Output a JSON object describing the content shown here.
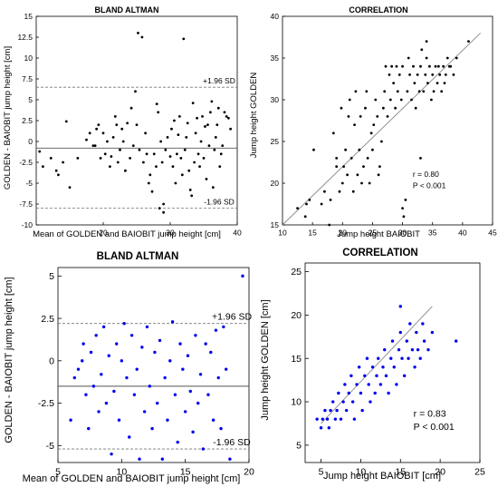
{
  "chart_data": [
    {
      "type": "scatter",
      "title": "BLAND ALTMAN",
      "xlabel": "Mean of GOLDEN and BAIOBIT jump height [cm]",
      "ylabel": "GOLDEN - BAIOBIT jump height [cm]",
      "xlim": [
        10,
        40
      ],
      "ylim": [
        -10,
        15
      ],
      "xticks": [
        20,
        30,
        40
      ],
      "yticks": [
        -10,
        -7.5,
        -5,
        -2.5,
        0,
        2.5,
        5,
        7.5,
        10,
        12.5,
        15
      ],
      "grid": false,
      "marker_color": "#000000",
      "mean_line": -0.8,
      "upper_sd": 6.5,
      "upper_label": "+1.96 SD",
      "lower_sd": -8.0,
      "lower_label": "-1.96 SD",
      "points": [
        [
          10.5,
          -1.2
        ],
        [
          11,
          -3
        ],
        [
          12.2,
          -2
        ],
        [
          13,
          -3.5
        ],
        [
          13.3,
          -4
        ],
        [
          14,
          -2.5
        ],
        [
          14.5,
          2.4
        ],
        [
          15,
          -5.5
        ],
        [
          16.2,
          -2
        ],
        [
          17.5,
          0.2
        ],
        [
          18,
          1
        ],
        [
          18.5,
          -0.5
        ],
        [
          18.8,
          -0.5
        ],
        [
          19,
          1.5
        ],
        [
          19.3,
          2
        ],
        [
          19.6,
          -2
        ],
        [
          20,
          1
        ],
        [
          20.3,
          -1.5
        ],
        [
          20.6,
          0
        ],
        [
          21,
          -3
        ],
        [
          21.2,
          -1.8
        ],
        [
          21.5,
          0.5
        ],
        [
          21.8,
          3
        ],
        [
          22,
          2
        ],
        [
          22.2,
          -2.5
        ],
        [
          22.5,
          -1
        ],
        [
          22.8,
          1.5
        ],
        [
          23,
          0
        ],
        [
          23.3,
          -3.5
        ],
        [
          23.6,
          2.2
        ],
        [
          24,
          -2
        ],
        [
          24.2,
          4
        ],
        [
          24.5,
          -0.5
        ],
        [
          24.8,
          6
        ],
        [
          25,
          2
        ],
        [
          25.2,
          13
        ],
        [
          25.4,
          -1
        ],
        [
          25.8,
          12.5
        ],
        [
          26,
          -2.5
        ],
        [
          26.3,
          1
        ],
        [
          26.5,
          -1.5
        ],
        [
          26.8,
          -5
        ],
        [
          27,
          -4
        ],
        [
          27.3,
          -6
        ],
        [
          27.6,
          -1.5
        ],
        [
          27.9,
          -3
        ],
        [
          28,
          4.5
        ],
        [
          28.2,
          3.5
        ],
        [
          28.4,
          -8
        ],
        [
          28.6,
          0
        ],
        [
          28.8,
          -2.5
        ],
        [
          29,
          -7.5
        ],
        [
          29,
          -8.5
        ],
        [
          29.3,
          -1
        ],
        [
          29.6,
          0.5
        ],
        [
          30,
          -1.8
        ],
        [
          30.2,
          1.5
        ],
        [
          30.4,
          -3
        ],
        [
          30.6,
          2.5
        ],
        [
          30.8,
          -5
        ],
        [
          31,
          -1.5
        ],
        [
          31.2,
          0.8
        ],
        [
          31.4,
          3
        ],
        [
          31.6,
          -2
        ],
        [
          31.8,
          -4
        ],
        [
          32,
          12.3
        ],
        [
          32.2,
          -1
        ],
        [
          32.4,
          0.5
        ],
        [
          32.6,
          2.2
        ],
        [
          32.8,
          -3.5
        ],
        [
          33,
          -5.8
        ],
        [
          33.2,
          -6.5
        ],
        [
          33.4,
          4.6
        ],
        [
          33.6,
          -2.5
        ],
        [
          33.8,
          1
        ],
        [
          34,
          2.8
        ],
        [
          34.2,
          -1.5
        ],
        [
          34.4,
          -3
        ],
        [
          34.6,
          0
        ],
        [
          34.8,
          3
        ],
        [
          35,
          -2
        ],
        [
          35.2,
          1.8
        ],
        [
          35.4,
          -4.5
        ],
        [
          35.6,
          2
        ],
        [
          35.8,
          -0.5
        ],
        [
          36,
          3.5
        ],
        [
          36.2,
          4.8
        ],
        [
          36.4,
          -5.5
        ],
        [
          36.6,
          -1
        ],
        [
          36.8,
          0.5
        ],
        [
          37,
          2
        ],
        [
          37.2,
          4
        ],
        [
          37.4,
          -3
        ],
        [
          37.6,
          -1.5
        ],
        [
          37.8,
          -0.5
        ],
        [
          38.1,
          3.5
        ],
        [
          38.4,
          3
        ],
        [
          38.7,
          2.8
        ],
        [
          39,
          1.5
        ]
      ]
    },
    {
      "type": "scatter",
      "title": "CORRELATION",
      "xlabel": "Jump height BAIOBIT",
      "ylabel": "Jump height GOLDEN",
      "xlim": [
        10,
        45
      ],
      "ylim": [
        15,
        40
      ],
      "xticks": [
        10,
        15,
        20,
        25,
        30,
        35,
        40,
        45
      ],
      "yticks": [
        15,
        20,
        25,
        30,
        35,
        40
      ],
      "grid": false,
      "marker_color": "#000000",
      "fit_line": [
        [
          10,
          15
        ],
        [
          43,
          38
        ]
      ],
      "stats": [
        "r = 0.80",
        "P < 0.001"
      ],
      "points": [
        [
          12.5,
          17
        ],
        [
          13.8,
          16
        ],
        [
          14,
          17.5
        ],
        [
          14.5,
          18
        ],
        [
          15.2,
          24
        ],
        [
          16.5,
          17.5
        ],
        [
          17,
          19
        ],
        [
          17.8,
          15
        ],
        [
          18,
          18
        ],
        [
          18.5,
          26
        ],
        [
          19,
          23
        ],
        [
          19,
          22
        ],
        [
          19.5,
          19
        ],
        [
          19.8,
          29
        ],
        [
          20,
          20
        ],
        [
          20.2,
          22
        ],
        [
          20.5,
          24
        ],
        [
          20.8,
          21
        ],
        [
          21,
          28
        ],
        [
          21.2,
          30
        ],
        [
          21.5,
          23
        ],
        [
          21.8,
          19
        ],
        [
          22,
          27
        ],
        [
          22.2,
          31
        ],
        [
          22.5,
          21
        ],
        [
          22.8,
          24
        ],
        [
          23,
          28
        ],
        [
          23.2,
          20
        ],
        [
          23.5,
          22
        ],
        [
          23.8,
          29
        ],
        [
          24,
          31
        ],
        [
          24.2,
          23
        ],
        [
          24.5,
          20
        ],
        [
          24.8,
          26
        ],
        [
          25,
          24
        ],
        [
          25.2,
          27
        ],
        [
          25.5,
          30
        ],
        [
          25.8,
          28
        ],
        [
          26,
          21
        ],
        [
          26.2,
          22
        ],
        [
          26.5,
          25
        ],
        [
          26.8,
          29
        ],
        [
          27,
          31
        ],
        [
          27.2,
          34
        ],
        [
          27.5,
          28
        ],
        [
          27.8,
          33
        ],
        [
          28,
          30
        ],
        [
          28.2,
          34
        ],
        [
          28.5,
          32
        ],
        [
          28.8,
          29
        ],
        [
          29,
          34
        ],
        [
          29.2,
          31
        ],
        [
          29.5,
          33
        ],
        [
          29.8,
          30
        ],
        [
          30,
          34
        ],
        [
          30,
          17
        ],
        [
          30.2,
          16
        ],
        [
          30.5,
          18
        ],
        [
          30.8,
          31
        ],
        [
          31,
          35
        ],
        [
          31.2,
          33
        ],
        [
          31.5,
          30
        ],
        [
          31.8,
          34
        ],
        [
          32,
          32
        ],
        [
          32.2,
          29
        ],
        [
          32.5,
          33
        ],
        [
          32.8,
          31
        ],
        [
          33,
          34
        ],
        [
          33.2,
          36
        ],
        [
          33.5,
          31
        ],
        [
          33.8,
          33
        ],
        [
          34,
          35
        ],
        [
          34.2,
          32
        ],
        [
          34.5,
          34
        ],
        [
          34.8,
          30
        ],
        [
          35,
          33
        ],
        [
          35.2,
          31
        ],
        [
          35.5,
          34
        ],
        [
          35.8,
          32
        ],
        [
          36,
          34
        ],
        [
          36.2,
          33
        ],
        [
          36.5,
          31
        ],
        [
          36.8,
          34
        ],
        [
          37,
          32
        ],
        [
          37.2,
          33
        ],
        [
          37.5,
          35
        ],
        [
          37.8,
          34
        ],
        [
          38,
          34
        ],
        [
          38.5,
          33
        ],
        [
          39,
          35
        ],
        [
          33,
          23
        ],
        [
          34,
          37
        ],
        [
          41,
          37
        ]
      ]
    },
    {
      "type": "scatter",
      "title": "BLAND ALTMAN",
      "xlabel": "Mean of GOLDEN and BAIOBIT jump height [cm]",
      "ylabel": "GOLDEN - BAIOBIT jump height [cm]",
      "xlim": [
        5,
        20
      ],
      "ylim": [
        -6,
        5.5
      ],
      "xticks": [
        5,
        10,
        15,
        20
      ],
      "yticks": [
        -5,
        -2.5,
        0,
        2.5,
        5
      ],
      "grid": false,
      "marker_color": "#0000ee",
      "mean_line": -1.5,
      "upper_sd": 2.2,
      "upper_label": "+1.96 SD",
      "lower_sd": -5.2,
      "lower_label": "-1.96 SD",
      "points": [
        [
          6,
          -3.5
        ],
        [
          6.3,
          -1
        ],
        [
          6.6,
          -0.5
        ],
        [
          6.9,
          0
        ],
        [
          7,
          1
        ],
        [
          7.2,
          -2
        ],
        [
          7.4,
          -4
        ],
        [
          7.6,
          0.5
        ],
        [
          7.8,
          -1.5
        ],
        [
          8,
          1.5
        ],
        [
          8.2,
          -3
        ],
        [
          8.4,
          -0.8
        ],
        [
          8.6,
          2
        ],
        [
          8.8,
          -2.5
        ],
        [
          9,
          0.3
        ],
        [
          9.2,
          -5.5
        ],
        [
          9.4,
          -1.8
        ],
        [
          9.6,
          1
        ],
        [
          9.8,
          -3.5
        ],
        [
          10,
          0
        ],
        [
          10.2,
          2.2
        ],
        [
          10.4,
          -1
        ],
        [
          10.6,
          -4.5
        ],
        [
          10.8,
          1.5
        ],
        [
          11,
          -2
        ],
        [
          11.2,
          -0.5
        ],
        [
          11.4,
          -5.8
        ],
        [
          11.6,
          0.8
        ],
        [
          11.8,
          -3
        ],
        [
          12,
          2
        ],
        [
          12.2,
          -1.5
        ],
        [
          12.4,
          -4
        ],
        [
          12.6,
          0.5
        ],
        [
          12.8,
          -2.5
        ],
        [
          13,
          1.2
        ],
        [
          13.2,
          -5.8
        ],
        [
          13.4,
          -1
        ],
        [
          13.6,
          -3.5
        ],
        [
          13.8,
          0
        ],
        [
          14,
          2.3
        ],
        [
          14.2,
          -2
        ],
        [
          14.4,
          -4.8
        ],
        [
          14.6,
          1
        ],
        [
          14.8,
          -0.5
        ],
        [
          15,
          -3
        ],
        [
          15.2,
          0.3
        ],
        [
          15.4,
          -1.8
        ],
        [
          15.6,
          -4.2
        ],
        [
          15.8,
          1.5
        ],
        [
          16,
          -2.5
        ],
        [
          16.2,
          -0.8
        ],
        [
          16.4,
          -5.2
        ],
        [
          16.6,
          1
        ],
        [
          16.8,
          -2
        ],
        [
          17,
          0.5
        ],
        [
          17.2,
          -3.5
        ],
        [
          17.4,
          1.8
        ],
        [
          17.6,
          -1
        ],
        [
          17.8,
          -4
        ],
        [
          18,
          2
        ],
        [
          18.2,
          -0.5
        ],
        [
          18.5,
          -5.8
        ],
        [
          19.5,
          5
        ]
      ]
    },
    {
      "type": "scatter",
      "title": "CORRELATION",
      "xlabel": "Jump height BAIOBIT [cm]",
      "ylabel": "Jump height GOLDEN [cm]",
      "xlim": [
        3,
        25
      ],
      "ylim": [
        3,
        26
      ],
      "xticks": [
        5,
        10,
        15,
        20,
        25
      ],
      "yticks": [
        5,
        10,
        15,
        20,
        25
      ],
      "grid": false,
      "marker_color": "#0000ee",
      "fit_line": [
        [
          5,
          7.5
        ],
        [
          19,
          21
        ]
      ],
      "stats": [
        "r = 0.83",
        "P < 0.001"
      ],
      "points": [
        [
          4.5,
          8
        ],
        [
          5,
          7
        ],
        [
          5.2,
          8
        ],
        [
          5.5,
          9
        ],
        [
          5.8,
          8
        ],
        [
          6,
          7
        ],
        [
          6.2,
          9
        ],
        [
          6.5,
          10
        ],
        [
          6.8,
          8
        ],
        [
          7,
          9
        ],
        [
          7.2,
          11
        ],
        [
          7.5,
          8
        ],
        [
          7.8,
          10
        ],
        [
          8,
          12
        ],
        [
          8.2,
          9
        ],
        [
          8.5,
          11
        ],
        [
          8.8,
          13
        ],
        [
          9,
          10
        ],
        [
          9.2,
          8
        ],
        [
          9.5,
          12
        ],
        [
          9.8,
          14
        ],
        [
          10,
          11
        ],
        [
          10.2,
          9
        ],
        [
          10.5,
          13
        ],
        [
          10.8,
          15
        ],
        [
          11,
          12
        ],
        [
          11.2,
          10
        ],
        [
          11.5,
          14
        ],
        [
          11.8,
          11
        ],
        [
          12,
          13
        ],
        [
          12.2,
          15
        ],
        [
          12.5,
          12
        ],
        [
          12.8,
          14
        ],
        [
          13,
          16
        ],
        [
          13.2,
          13
        ],
        [
          13.5,
          11
        ],
        [
          13.8,
          15
        ],
        [
          14,
          17
        ],
        [
          14.2,
          14
        ],
        [
          14.5,
          12
        ],
        [
          14.8,
          16
        ],
        [
          15,
          18
        ],
        [
          15.2,
          15
        ],
        [
          15.5,
          13
        ],
        [
          15.8,
          17
        ],
        [
          16,
          15
        ],
        [
          16.2,
          19
        ],
        [
          16.5,
          16
        ],
        [
          16.8,
          14
        ],
        [
          17,
          18
        ],
        [
          17.2,
          16
        ],
        [
          17.5,
          15
        ],
        [
          17.8,
          19
        ],
        [
          18,
          17
        ],
        [
          18.5,
          16
        ],
        [
          19,
          18
        ],
        [
          15,
          21
        ],
        [
          22,
          17
        ]
      ]
    }
  ]
}
